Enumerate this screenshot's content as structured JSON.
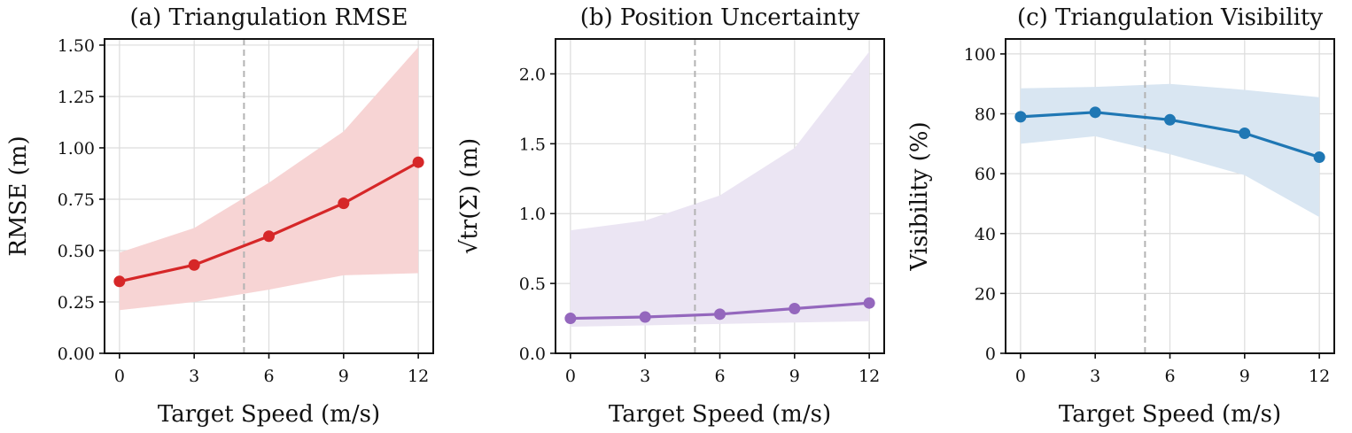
{
  "chart_data": [
    {
      "type": "line",
      "title": "(a) Triangulation RMSE",
      "xlabel": "Target Speed (m/s)",
      "ylabel": "RMSE (m)",
      "x": [
        0,
        3,
        6,
        9,
        12
      ],
      "xticks": [
        "0",
        "3",
        "6",
        "9",
        "12"
      ],
      "xlim": [
        -0.6,
        12.6
      ],
      "ylim": [
        0,
        1.53
      ],
      "yticks": [
        0,
        0.25,
        0.5,
        0.75,
        1.0,
        1.25,
        1.5
      ],
      "ytick_labels": [
        "0.00",
        "0.25",
        "0.50",
        "0.75",
        "1.00",
        "1.25",
        "1.50"
      ],
      "series": [
        {
          "values": [
            0.35,
            0.43,
            0.57,
            0.73,
            0.93
          ],
          "lower": [
            0.21,
            0.25,
            0.31,
            0.38,
            0.39
          ],
          "upper": [
            0.49,
            0.61,
            0.83,
            1.08,
            1.49
          ]
        }
      ],
      "reference_x": 5,
      "color": "#d62728",
      "band_color": "#f7d4d4",
      "grid": true
    },
    {
      "type": "line",
      "title": "(b) Position Uncertainty",
      "xlabel": "Target Speed (m/s)",
      "ylabel": "√tr(Σ) (m)",
      "x": [
        0,
        3,
        6,
        9,
        12
      ],
      "xticks": [
        "0",
        "3",
        "6",
        "9",
        "12"
      ],
      "xlim": [
        -0.6,
        12.6
      ],
      "ylim": [
        0,
        2.25
      ],
      "yticks": [
        0,
        0.5,
        1.0,
        1.5,
        2.0
      ],
      "ytick_labels": [
        "0.0",
        "0.5",
        "1.0",
        "1.5",
        "2.0"
      ],
      "series": [
        {
          "values": [
            0.25,
            0.26,
            0.28,
            0.32,
            0.36
          ],
          "lower": [
            0.19,
            0.2,
            0.21,
            0.22,
            0.23
          ],
          "upper": [
            0.88,
            0.95,
            1.13,
            1.47,
            2.16
          ]
        }
      ],
      "reference_x": 5,
      "color": "#9467bd",
      "band_color": "#ebe5f3",
      "grid": true
    },
    {
      "type": "line",
      "title": "(c) Triangulation Visibility",
      "xlabel": "Target Speed (m/s)",
      "ylabel": "Visibility (%)",
      "x": [
        0,
        3,
        6,
        9,
        12
      ],
      "xticks": [
        "0",
        "3",
        "6",
        "9",
        "12"
      ],
      "xlim": [
        -0.6,
        12.6
      ],
      "ylim": [
        0,
        105
      ],
      "yticks": [
        0,
        20,
        40,
        60,
        80,
        100
      ],
      "ytick_labels": [
        "0",
        "20",
        "40",
        "60",
        "80",
        "100"
      ],
      "series": [
        {
          "values": [
            79,
            80.5,
            78,
            73.5,
            65.5
          ],
          "lower": [
            70,
            72.5,
            66.5,
            59.5,
            45.5
          ],
          "upper": [
            88.5,
            89,
            90,
            88,
            85.5
          ]
        }
      ],
      "reference_x": 5,
      "color": "#1f77b4",
      "band_color": "#d9e6f2",
      "grid": true
    }
  ]
}
